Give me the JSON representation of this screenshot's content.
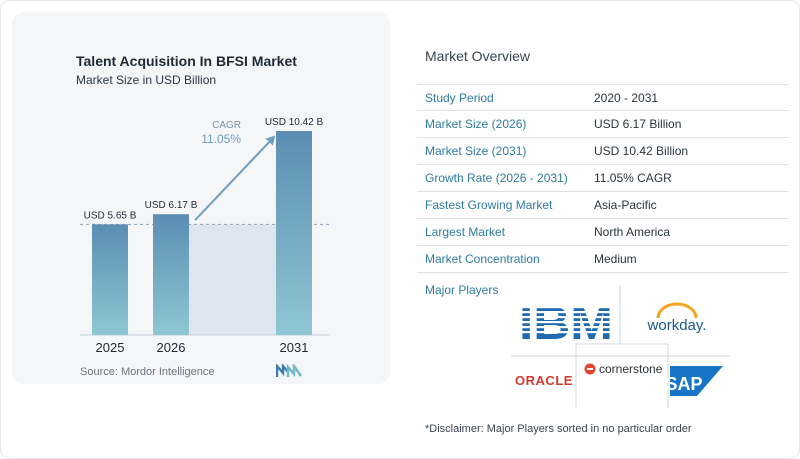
{
  "chart_data": {
    "type": "bar",
    "title": "Talent Acquisition In BFSI Market",
    "subtitle": "Market Size in USD Billion",
    "categories": [
      "2025",
      "2026",
      "2031"
    ],
    "values": [
      5.65,
      6.17,
      10.42
    ],
    "data_labels": [
      "USD 5.65 B",
      "USD 6.17 B",
      "USD 10.42 B"
    ],
    "ylim": [
      0,
      10.42
    ],
    "cagr_label": "CAGR",
    "cagr_value": "11.05%",
    "colors": {
      "bar_top": "#5b8db3",
      "bar_bottom": "#8ec7d3",
      "shade": "#dde6ee",
      "arrow": "#6f9fbf"
    }
  },
  "source": "Source: Mordor Intelligence",
  "overview": {
    "title": "Market Overview",
    "rows": [
      {
        "key": "Study Period",
        "value": "2020 - 2031"
      },
      {
        "key": "Market Size (2026)",
        "value": "USD 6.17 Billion"
      },
      {
        "key": "Market Size (2031)",
        "value": "USD 10.42 Billion"
      },
      {
        "key": "Growth Rate (2026 - 2031)",
        "value": "11.05% CAGR"
      },
      {
        "key": "Fastest Growing Market",
        "value": "Asia-Pacific"
      },
      {
        "key": "Largest Market",
        "value": "North America"
      },
      {
        "key": "Market Concentration",
        "value": "Medium"
      }
    ]
  },
  "players": {
    "label": "Major Players",
    "ibm": "IBM",
    "workday": "workday.",
    "oracle": "ORACLE",
    "cornerstone": "cornerstone",
    "sap": "SAP"
  },
  "disclaimer": "*Disclaimer: Major Players sorted in no particular order",
  "icons": {
    "mordor_logo": "mordor-intelligence-logo-icon"
  }
}
